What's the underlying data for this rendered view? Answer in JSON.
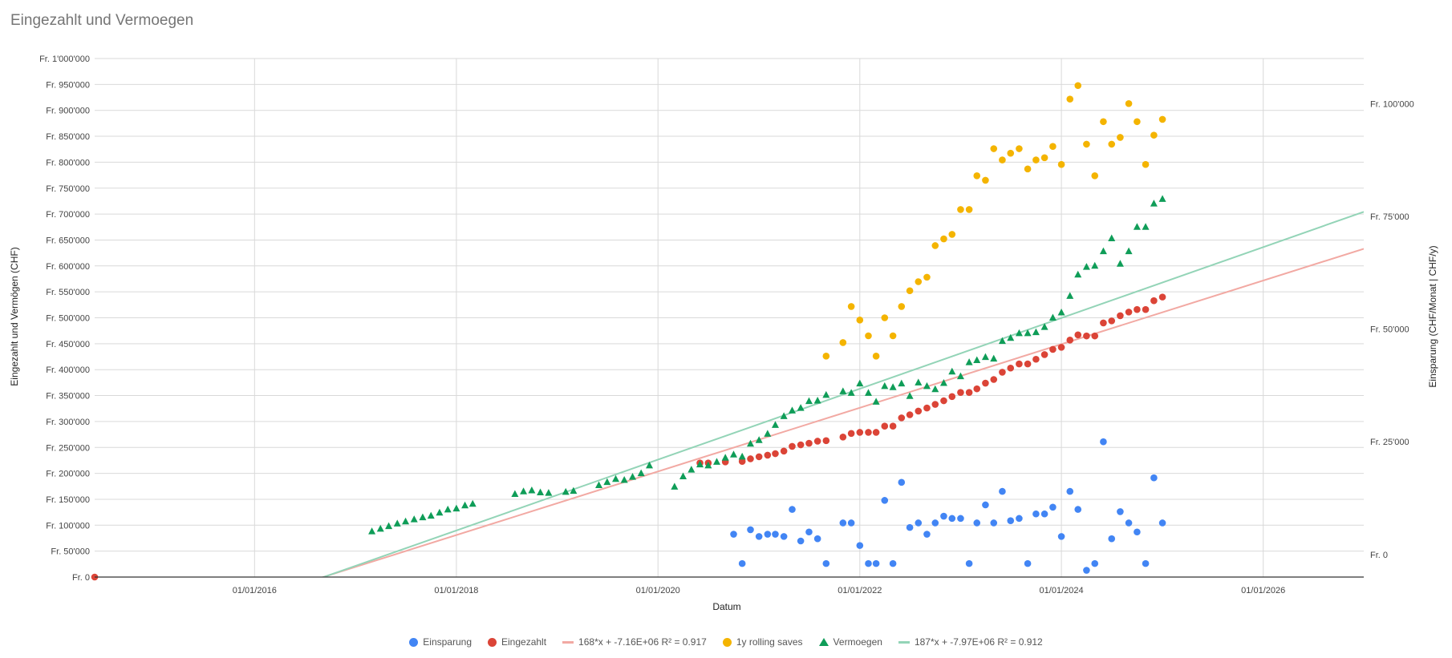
{
  "chart_data": {
    "type": "scatter",
    "title": "Eingezahlt und Vermoegen",
    "xlabel": "Datum",
    "ylabel_left": "Eingezahlt und Vermögen (CHF)",
    "ylabel_right": "Einsparung (CHF/Monat | CHF/y)",
    "xlim": [
      "2014-06-01",
      "2026-12-31"
    ],
    "ylim_left": [
      0,
      1000000
    ],
    "ylim_right": [
      -5000,
      110000
    ],
    "x_ticks": [
      "01/01/2016",
      "01/01/2018",
      "01/01/2020",
      "01/01/2022",
      "01/01/2024",
      "01/01/2026"
    ],
    "y_ticks_left": [
      "Fr. 0",
      "Fr. 50'000",
      "Fr. 100'000",
      "Fr. 150'000",
      "Fr. 200'000",
      "Fr. 250'000",
      "Fr. 300'000",
      "Fr. 350'000",
      "Fr. 400'000",
      "Fr. 450'000",
      "Fr. 500'000",
      "Fr. 550'000",
      "Fr. 600'000",
      "Fr. 650'000",
      "Fr. 700'000",
      "Fr. 750'000",
      "Fr. 800'000",
      "Fr. 850'000",
      "Fr. 900'000",
      "Fr. 950'000",
      "Fr. 1'000'000"
    ],
    "y_tick_values_left": [
      0,
      50000,
      100000,
      150000,
      200000,
      250000,
      300000,
      350000,
      400000,
      450000,
      500000,
      550000,
      600000,
      650000,
      700000,
      750000,
      800000,
      850000,
      900000,
      950000,
      1000000
    ],
    "y_ticks_right": [
      "Fr. 0",
      "Fr. 25'000",
      "Fr. 50'000",
      "Fr. 75'000",
      "Fr. 100'000"
    ],
    "y_tick_values_right": [
      0,
      25000,
      50000,
      75000,
      100000
    ],
    "gridlines": true,
    "legend_position": "bottom",
    "colors": {
      "einsparung": "#4285f4",
      "eingezahlt": "#db4437",
      "trend_eingezahlt": "#f2a9a3",
      "rolling": "#f4b400",
      "vermoegen": "#0f9d58",
      "trend_vermoegen": "#93d4b7",
      "grid": "#d9d9d9",
      "axis": "#333333"
    },
    "series": [
      {
        "name": "Einsparung",
        "axis": "right",
        "marker": "circle",
        "color": "#4285f4",
        "points": [
          [
            "2020-10-01",
            4500
          ],
          [
            "2020-11-01",
            -2000
          ],
          [
            "2020-12-01",
            5500
          ],
          [
            "2021-01-01",
            4000
          ],
          [
            "2021-02-01",
            4500
          ],
          [
            "2021-03-01",
            4500
          ],
          [
            "2021-04-01",
            4000
          ],
          [
            "2021-05-01",
            10000
          ],
          [
            "2021-06-01",
            3000
          ],
          [
            "2021-07-01",
            5000
          ],
          [
            "2021-08-01",
            3500
          ],
          [
            "2021-09-01",
            -2000
          ],
          [
            "2021-11-01",
            7000
          ],
          [
            "2021-12-01",
            7000
          ],
          [
            "2022-01-01",
            2000
          ],
          [
            "2022-02-01",
            -2000
          ],
          [
            "2022-03-01",
            -2000
          ],
          [
            "2022-04-01",
            12000
          ],
          [
            "2022-05-01",
            -2000
          ],
          [
            "2022-06-01",
            16000
          ],
          [
            "2022-07-01",
            6000
          ],
          [
            "2022-08-01",
            7000
          ],
          [
            "2022-09-01",
            4500
          ],
          [
            "2022-10-01",
            7000
          ],
          [
            "2022-11-01",
            8500
          ],
          [
            "2022-12-01",
            8000
          ],
          [
            "2023-01-01",
            8000
          ],
          [
            "2023-02-01",
            -2000
          ],
          [
            "2023-03-01",
            7000
          ],
          [
            "2023-04-01",
            11000
          ],
          [
            "2023-05-01",
            7000
          ],
          [
            "2023-06-01",
            14000
          ],
          [
            "2023-07-01",
            7500
          ],
          [
            "2023-08-01",
            8000
          ],
          [
            "2023-09-01",
            -2000
          ],
          [
            "2023-10-01",
            9000
          ],
          [
            "2023-11-01",
            9000
          ],
          [
            "2023-12-01",
            10500
          ],
          [
            "2024-01-01",
            4000
          ],
          [
            "2024-02-01",
            14000
          ],
          [
            "2024-03-01",
            10000
          ],
          [
            "2024-04-01",
            -3500
          ],
          [
            "2024-05-01",
            -2000
          ],
          [
            "2024-06-01",
            25000
          ],
          [
            "2024-07-01",
            3500
          ],
          [
            "2024-08-01",
            9500
          ],
          [
            "2024-09-01",
            7000
          ],
          [
            "2024-10-01",
            5000
          ],
          [
            "2024-11-01",
            -2000
          ],
          [
            "2024-12-01",
            17000
          ],
          [
            "2025-01-01",
            7000
          ]
        ]
      },
      {
        "name": "Eingezahlt",
        "axis": "left",
        "marker": "circle",
        "color": "#db4437",
        "points": [
          [
            "2014-06-01",
            0
          ],
          [
            "2020-06-01",
            220000
          ],
          [
            "2020-07-01",
            220000
          ],
          [
            "2020-09-01",
            222000
          ],
          [
            "2020-11-01",
            223000
          ],
          [
            "2020-12-01",
            228000
          ],
          [
            "2021-01-01",
            232000
          ],
          [
            "2021-02-01",
            235000
          ],
          [
            "2021-03-01",
            238000
          ],
          [
            "2021-04-01",
            243000
          ],
          [
            "2021-05-01",
            252000
          ],
          [
            "2021-06-01",
            255000
          ],
          [
            "2021-07-01",
            258000
          ],
          [
            "2021-08-01",
            262000
          ],
          [
            "2021-09-01",
            263000
          ],
          [
            "2021-11-01",
            270000
          ],
          [
            "2021-12-01",
            277000
          ],
          [
            "2022-01-01",
            279000
          ],
          [
            "2022-02-01",
            279000
          ],
          [
            "2022-03-01",
            279000
          ],
          [
            "2022-04-01",
            291000
          ],
          [
            "2022-05-01",
            291000
          ],
          [
            "2022-06-01",
            307000
          ],
          [
            "2022-07-01",
            313000
          ],
          [
            "2022-08-01",
            320000
          ],
          [
            "2022-09-01",
            326000
          ],
          [
            "2022-10-01",
            333000
          ],
          [
            "2022-11-01",
            340000
          ],
          [
            "2022-12-01",
            348000
          ],
          [
            "2023-01-01",
            356000
          ],
          [
            "2023-02-01",
            356000
          ],
          [
            "2023-03-01",
            363000
          ],
          [
            "2023-04-01",
            374000
          ],
          [
            "2023-05-01",
            381000
          ],
          [
            "2023-06-01",
            395000
          ],
          [
            "2023-07-01",
            403000
          ],
          [
            "2023-08-01",
            411000
          ],
          [
            "2023-09-01",
            411000
          ],
          [
            "2023-10-01",
            420000
          ],
          [
            "2023-11-01",
            429000
          ],
          [
            "2023-12-01",
            439000
          ],
          [
            "2024-01-01",
            443000
          ],
          [
            "2024-02-01",
            457000
          ],
          [
            "2024-03-01",
            467000
          ],
          [
            "2024-04-01",
            465000
          ],
          [
            "2024-05-01",
            465000
          ],
          [
            "2024-06-01",
            490000
          ],
          [
            "2024-07-01",
            494000
          ],
          [
            "2024-08-01",
            504000
          ],
          [
            "2024-09-01",
            511000
          ],
          [
            "2024-10-01",
            516000
          ],
          [
            "2024-11-01",
            516000
          ],
          [
            "2024-12-01",
            533000
          ],
          [
            "2025-01-01",
            540000
          ]
        ]
      },
      {
        "name": "168*x + -7.16E+06 R² = 0.917",
        "axis": "left",
        "marker": "line",
        "color": "#f2a9a3",
        "slope": 168,
        "intercept": -7160000
      },
      {
        "name": "1y rolling saves",
        "axis": "right",
        "marker": "circle",
        "color": "#f4b400",
        "points": [
          [
            "2021-09-01",
            44000
          ],
          [
            "2021-11-01",
            47000
          ],
          [
            "2021-12-01",
            55000
          ],
          [
            "2022-01-01",
            52000
          ],
          [
            "2022-02-01",
            48500
          ],
          [
            "2022-03-01",
            44000
          ],
          [
            "2022-04-01",
            52500
          ],
          [
            "2022-05-01",
            48500
          ],
          [
            "2022-06-01",
            55000
          ],
          [
            "2022-07-01",
            58500
          ],
          [
            "2022-08-01",
            60500
          ],
          [
            "2022-09-01",
            61500
          ],
          [
            "2022-10-01",
            68500
          ],
          [
            "2022-11-01",
            70000
          ],
          [
            "2022-12-01",
            71000
          ],
          [
            "2023-01-01",
            76500
          ],
          [
            "2023-02-01",
            76500
          ],
          [
            "2023-03-01",
            84000
          ],
          [
            "2023-04-01",
            83000
          ],
          [
            "2023-05-01",
            90000
          ],
          [
            "2023-06-01",
            87500
          ],
          [
            "2023-07-01",
            89000
          ],
          [
            "2023-08-01",
            90000
          ],
          [
            "2023-09-01",
            85500
          ],
          [
            "2023-10-01",
            87500
          ],
          [
            "2023-11-01",
            88000
          ],
          [
            "2023-12-01",
            90500
          ],
          [
            "2024-01-01",
            86500
          ],
          [
            "2024-02-01",
            101000
          ],
          [
            "2024-03-01",
            104000
          ],
          [
            "2024-04-01",
            91000
          ],
          [
            "2024-05-01",
            84000
          ],
          [
            "2024-06-01",
            96000
          ],
          [
            "2024-07-01",
            91000
          ],
          [
            "2024-08-01",
            92500
          ],
          [
            "2024-09-01",
            100000
          ],
          [
            "2024-10-01",
            96000
          ],
          [
            "2024-11-01",
            86500
          ],
          [
            "2024-12-01",
            93000
          ],
          [
            "2025-01-01",
            96500
          ]
        ]
      },
      {
        "name": "Vermoegen",
        "axis": "left",
        "marker": "triangle",
        "color": "#0f9d58",
        "points": [
          [
            "2017-03-01",
            88000
          ],
          [
            "2017-04-01",
            93000
          ],
          [
            "2017-05-01",
            98000
          ],
          [
            "2017-06-01",
            103000
          ],
          [
            "2017-07-01",
            107000
          ],
          [
            "2017-08-01",
            111000
          ],
          [
            "2017-09-01",
            115000
          ],
          [
            "2017-10-01",
            118000
          ],
          [
            "2017-11-01",
            124000
          ],
          [
            "2017-12-01",
            130000
          ],
          [
            "2018-01-01",
            132000
          ],
          [
            "2018-02-01",
            138000
          ],
          [
            "2018-03-01",
            141000
          ],
          [
            "2018-08-01",
            160000
          ],
          [
            "2018-09-01",
            165000
          ],
          [
            "2018-10-01",
            167000
          ],
          [
            "2018-11-01",
            163000
          ],
          [
            "2018-12-01",
            162000
          ],
          [
            "2019-02-01",
            164000
          ],
          [
            "2019-03-01",
            166000
          ],
          [
            "2019-06-01",
            177000
          ],
          [
            "2019-07-01",
            183000
          ],
          [
            "2019-08-01",
            189000
          ],
          [
            "2019-09-01",
            187000
          ],
          [
            "2019-10-01",
            193000
          ],
          [
            "2019-11-01",
            200000
          ],
          [
            "2019-12-01",
            215000
          ],
          [
            "2020-03-01",
            174000
          ],
          [
            "2020-04-01",
            194000
          ],
          [
            "2020-05-01",
            207000
          ],
          [
            "2020-06-01",
            217000
          ],
          [
            "2020-07-01",
            215000
          ],
          [
            "2020-08-01",
            222000
          ],
          [
            "2020-09-01",
            230000
          ],
          [
            "2020-10-01",
            236000
          ],
          [
            "2020-11-01",
            232000
          ],
          [
            "2020-12-01",
            257000
          ],
          [
            "2021-01-01",
            264000
          ],
          [
            "2021-02-01",
            276000
          ],
          [
            "2021-03-01",
            293000
          ],
          [
            "2021-04-01",
            310000
          ],
          [
            "2021-05-01",
            321000
          ],
          [
            "2021-06-01",
            326000
          ],
          [
            "2021-07-01",
            339000
          ],
          [
            "2021-08-01",
            340000
          ],
          [
            "2021-09-01",
            351000
          ],
          [
            "2021-11-01",
            358000
          ],
          [
            "2021-12-01",
            355000
          ],
          [
            "2022-01-01",
            373000
          ],
          [
            "2022-02-01",
            355000
          ],
          [
            "2022-03-01",
            338000
          ],
          [
            "2022-04-01",
            368000
          ],
          [
            "2022-05-01",
            366000
          ],
          [
            "2022-06-01",
            373000
          ],
          [
            "2022-07-01",
            349000
          ],
          [
            "2022-08-01",
            375000
          ],
          [
            "2022-09-01",
            368000
          ],
          [
            "2022-10-01",
            362000
          ],
          [
            "2022-11-01",
            374000
          ],
          [
            "2022-12-01",
            396000
          ],
          [
            "2023-01-01",
            387000
          ],
          [
            "2023-02-01",
            414000
          ],
          [
            "2023-03-01",
            418000
          ],
          [
            "2023-04-01",
            424000
          ],
          [
            "2023-05-01",
            421000
          ],
          [
            "2023-06-01",
            455000
          ],
          [
            "2023-07-01",
            461000
          ],
          [
            "2023-08-01",
            470000
          ],
          [
            "2023-09-01",
            470000
          ],
          [
            "2023-10-01",
            472000
          ],
          [
            "2023-11-01",
            482000
          ],
          [
            "2023-12-01",
            500000
          ],
          [
            "2024-01-01",
            510000
          ],
          [
            "2024-02-01",
            542000
          ],
          [
            "2024-03-01",
            583000
          ],
          [
            "2024-04-01",
            598000
          ],
          [
            "2024-05-01",
            600000
          ],
          [
            "2024-06-01",
            628000
          ],
          [
            "2024-07-01",
            653000
          ],
          [
            "2024-08-01",
            604000
          ],
          [
            "2024-09-01",
            628000
          ],
          [
            "2024-10-01",
            675000
          ],
          [
            "2024-11-01",
            675000
          ],
          [
            "2024-12-01",
            720000
          ],
          [
            "2025-01-01",
            729000
          ]
        ]
      },
      {
        "name": "187*x + -7.97E+06 R² = 0.912",
        "axis": "left",
        "marker": "line",
        "color": "#93d4b7",
        "slope": 187,
        "intercept": -7970000
      }
    ]
  },
  "legend": [
    {
      "label": "Einsparung",
      "swatch": "dot",
      "color": "#4285f4"
    },
    {
      "label": "Eingezahlt",
      "swatch": "dot",
      "color": "#db4437"
    },
    {
      "label": "168*x + -7.16E+06 R² = 0.917",
      "swatch": "line",
      "color": "#f2a9a3"
    },
    {
      "label": "1y rolling saves",
      "swatch": "dot",
      "color": "#f4b400"
    },
    {
      "label": "Vermoegen",
      "swatch": "triangle",
      "color": "#0f9d58"
    },
    {
      "label": "187*x + -7.97E+06 R² = 0.912",
      "swatch": "line",
      "color": "#93d4b7"
    }
  ]
}
